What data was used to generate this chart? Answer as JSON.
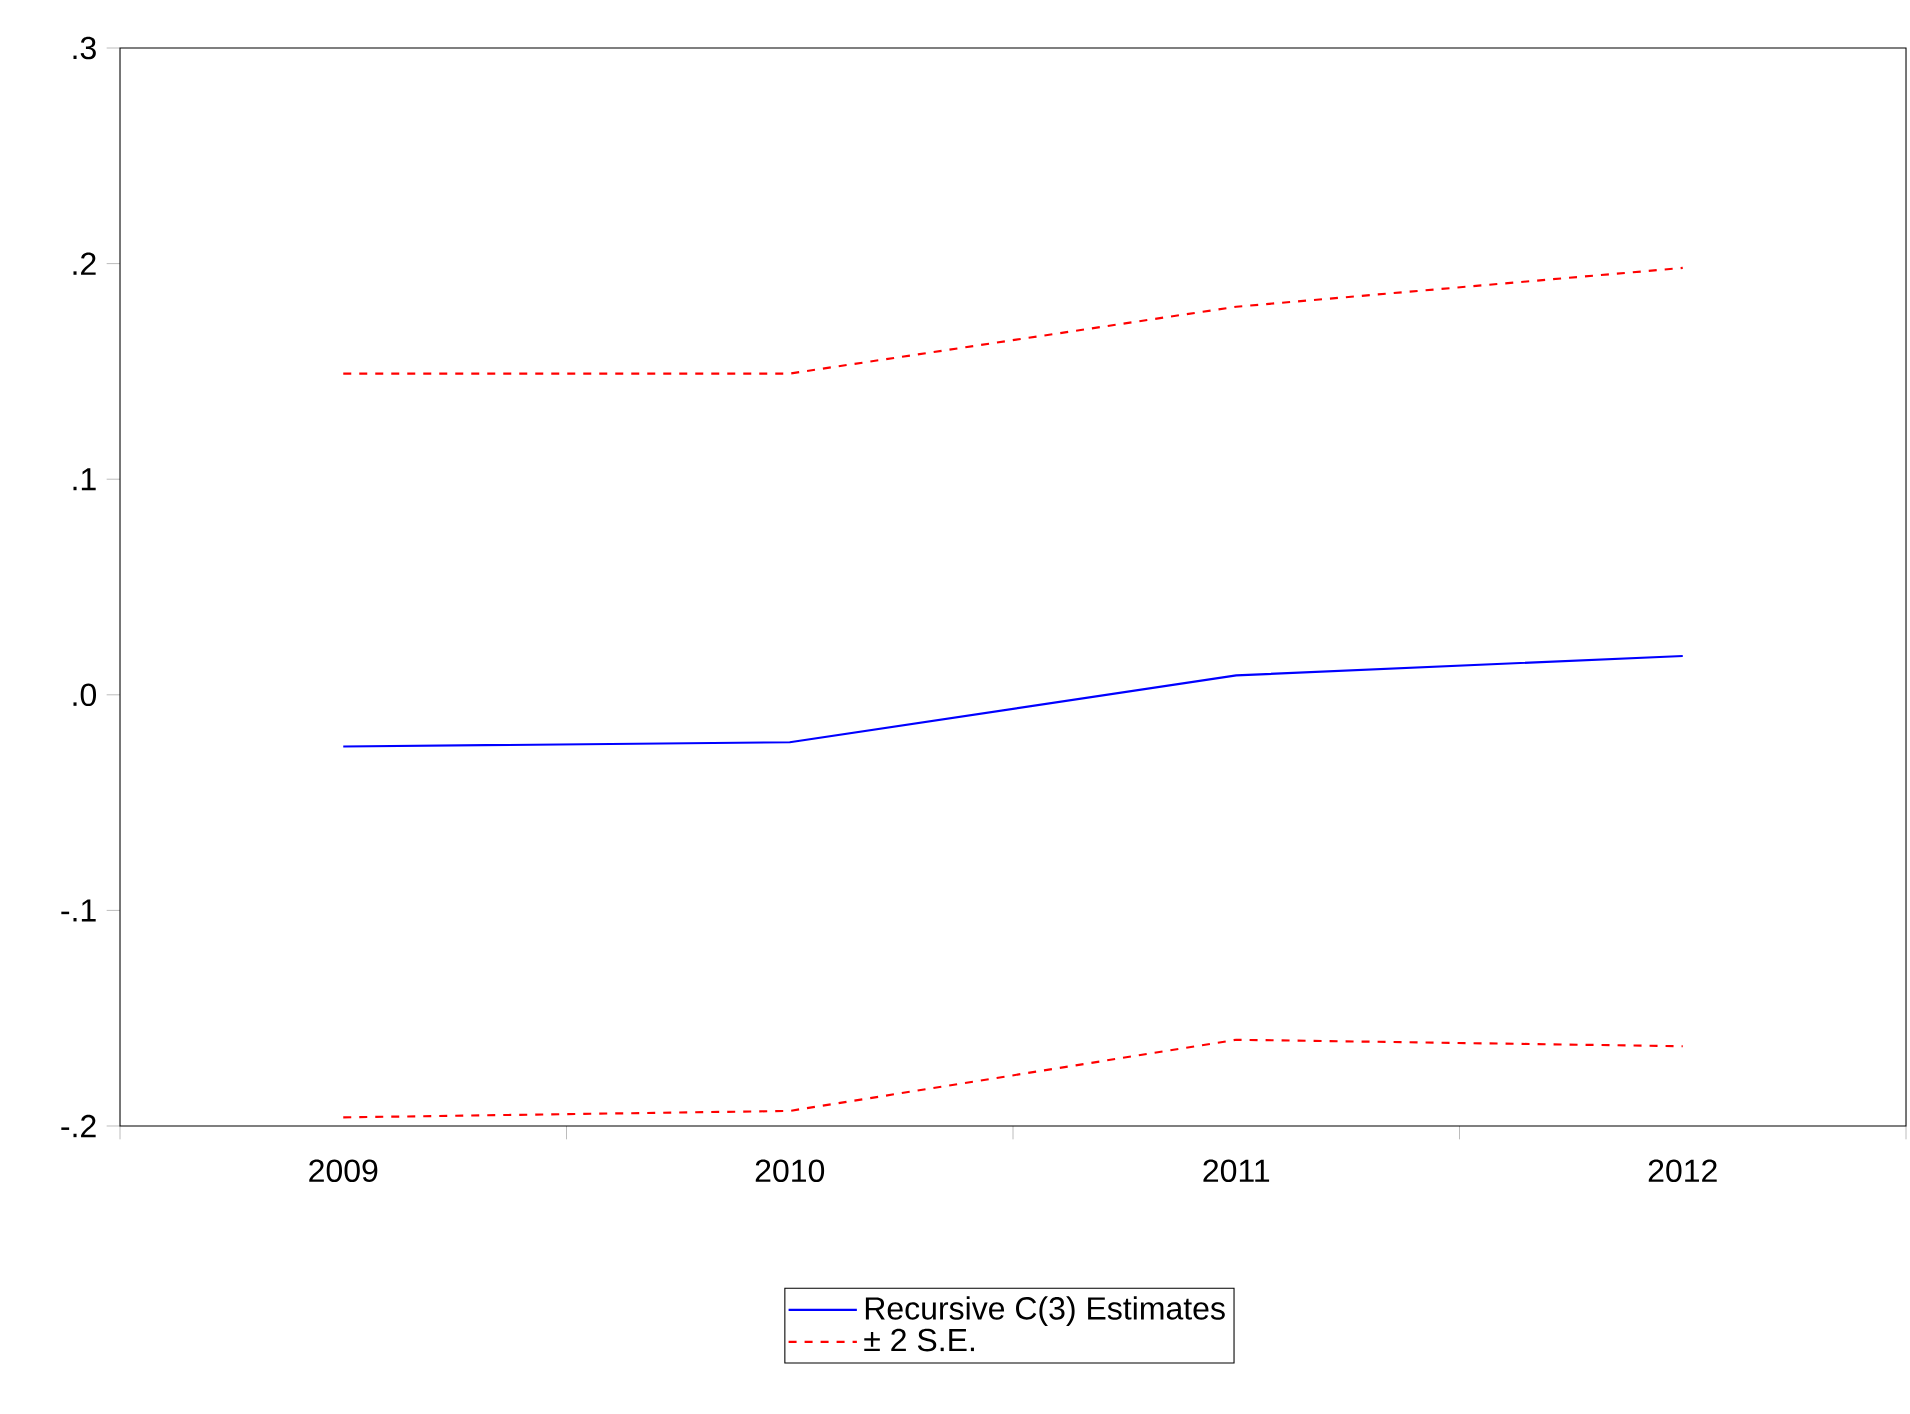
{
  "chart_data": {
    "type": "line",
    "categories": [
      "2009",
      "2010",
      "2011",
      "2012"
    ],
    "series": [
      {
        "name": "Recursive C(3) Estimates",
        "color": "#0000ff",
        "line_style": "solid",
        "values": [
          -0.024,
          -0.022,
          0.009,
          0.018
        ]
      },
      {
        "name": "± 2 S.E.",
        "color": "#ff0000",
        "line_style": "dashed",
        "values": [
          0.149,
          0.149,
          0.18,
          0.198
        ]
      },
      {
        "color": "#ff0000",
        "line_style": "dashed",
        "values": [
          -0.196,
          -0.193,
          -0.16,
          -0.163
        ]
      }
    ],
    "ylim": [
      -0.2,
      0.3
    ],
    "yticks": [
      {
        "value": -0.2,
        "label": "-.2"
      },
      {
        "value": -0.1,
        "label": "-.1"
      },
      {
        "value": 0.0,
        "label": ".0"
      },
      {
        "value": 0.1,
        "label": ".1"
      },
      {
        "value": 0.2,
        "label": ".2"
      },
      {
        "value": 0.3,
        "label": ".3"
      }
    ],
    "legend": "bottom"
  }
}
